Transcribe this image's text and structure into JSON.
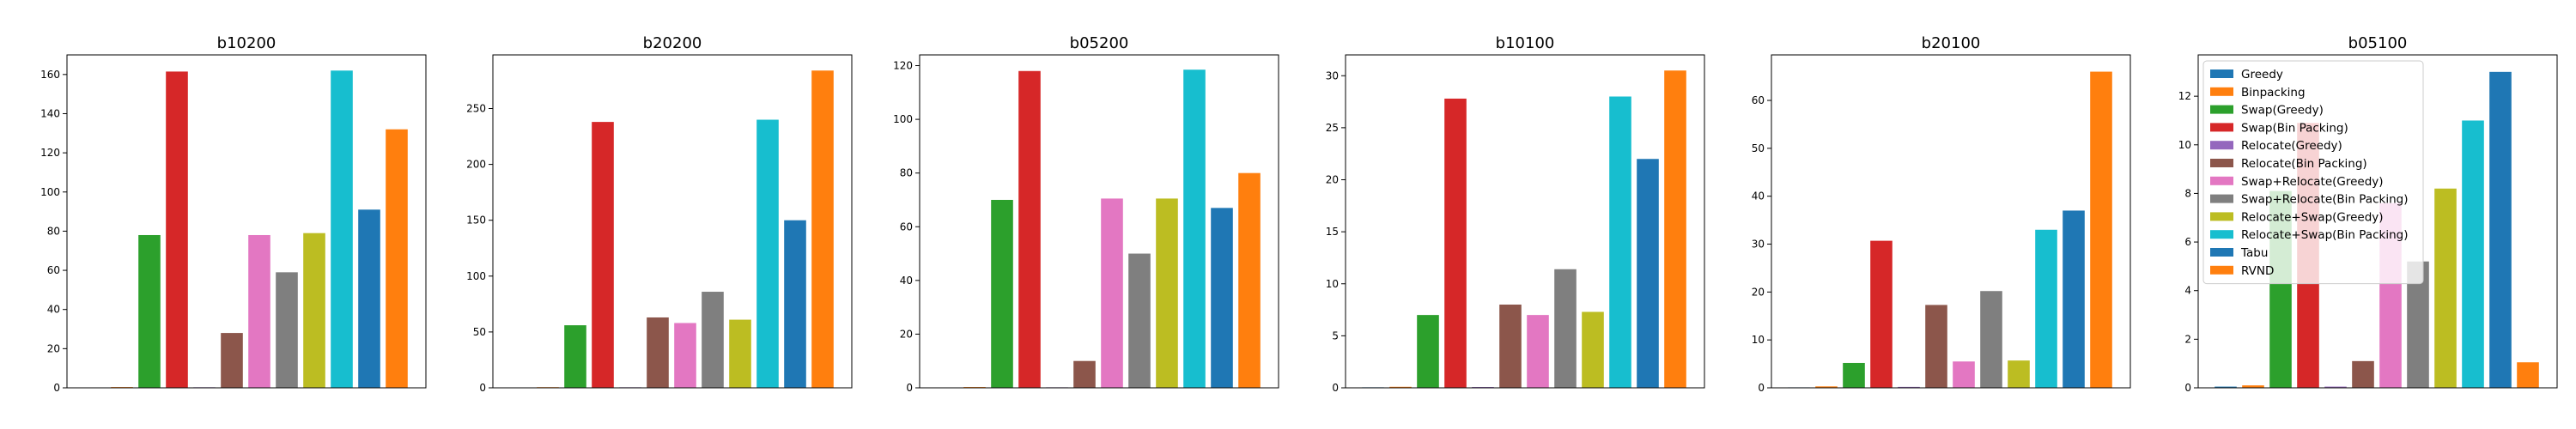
{
  "chart_data": {
    "type": "bar",
    "grid": false,
    "legend_placement": "upper-left of last panel",
    "series": [
      {
        "name": "Greedy",
        "color": "#1f77b4"
      },
      {
        "name": "Binpacking",
        "color": "#ff7f0e"
      },
      {
        "name": "Swap(Greedy)",
        "color": "#2ca02c"
      },
      {
        "name": "Swap(Bin Packing)",
        "color": "#d62728"
      },
      {
        "name": "Relocate(Greedy)",
        "color": "#9467bd"
      },
      {
        "name": "Relocate(Bin Packing)",
        "color": "#8c564b"
      },
      {
        "name": "Swap+Relocate(Greedy)",
        "color": "#e377c2"
      },
      {
        "name": "Swap+Relocate(Bin Packing)",
        "color": "#7f7f7f"
      },
      {
        "name": "Relocate+Swap(Greedy)",
        "color": "#bcbd22"
      },
      {
        "name": "Relocate+Swap(Bin Packing)",
        "color": "#17becf"
      },
      {
        "name": "Tabu",
        "color": "#1f77b4"
      },
      {
        "name": "RVND",
        "color": "#ff7f0e"
      }
    ],
    "panels": [
      {
        "title": "b10200",
        "ylim": [
          0,
          170
        ],
        "yticks": [
          0,
          20,
          40,
          60,
          80,
          100,
          120,
          140,
          160
        ],
        "values": [
          0.1,
          0.4,
          78,
          161.5,
          0.3,
          28,
          78,
          59,
          79,
          162,
          91,
          132
        ]
      },
      {
        "title": "b20200",
        "ylim": [
          0,
          298
        ],
        "yticks": [
          0,
          50,
          100,
          150,
          200,
          250
        ],
        "values": [
          0.2,
          0.6,
          56,
          238,
          0.5,
          63,
          58,
          86,
          61,
          240,
          150,
          284
        ]
      },
      {
        "title": "b05200",
        "ylim": [
          0,
          124
        ],
        "yticks": [
          0,
          20,
          40,
          60,
          80,
          100,
          120
        ],
        "values": [
          0.1,
          0.3,
          70,
          118,
          0.2,
          10,
          70.5,
          50,
          70.5,
          118.5,
          67,
          80
        ]
      },
      {
        "title": "b10100",
        "ylim": [
          0,
          32
        ],
        "yticks": [
          0,
          5,
          10,
          15,
          20,
          25,
          30
        ],
        "values": [
          0.05,
          0.1,
          7,
          27.8,
          0.08,
          8,
          7,
          11.4,
          7.3,
          28,
          22,
          30.5
        ]
      },
      {
        "title": "b20100",
        "ylim": [
          0,
          69.5
        ],
        "yticks": [
          0,
          10,
          20,
          30,
          40,
          50,
          60
        ],
        "values": [
          0.1,
          0.3,
          5.2,
          30.7,
          0.2,
          17.3,
          5.5,
          20.2,
          5.7,
          33,
          37,
          66
        ]
      },
      {
        "title": "b05100",
        "ylim": [
          0,
          13.7
        ],
        "yticks": [
          0,
          2,
          4,
          6,
          8,
          10,
          12
        ],
        "values": [
          0.05,
          0.1,
          8.1,
          10.9,
          0.05,
          1.1,
          7.6,
          5.2,
          8.2,
          11,
          13,
          1.05
        ]
      }
    ]
  }
}
